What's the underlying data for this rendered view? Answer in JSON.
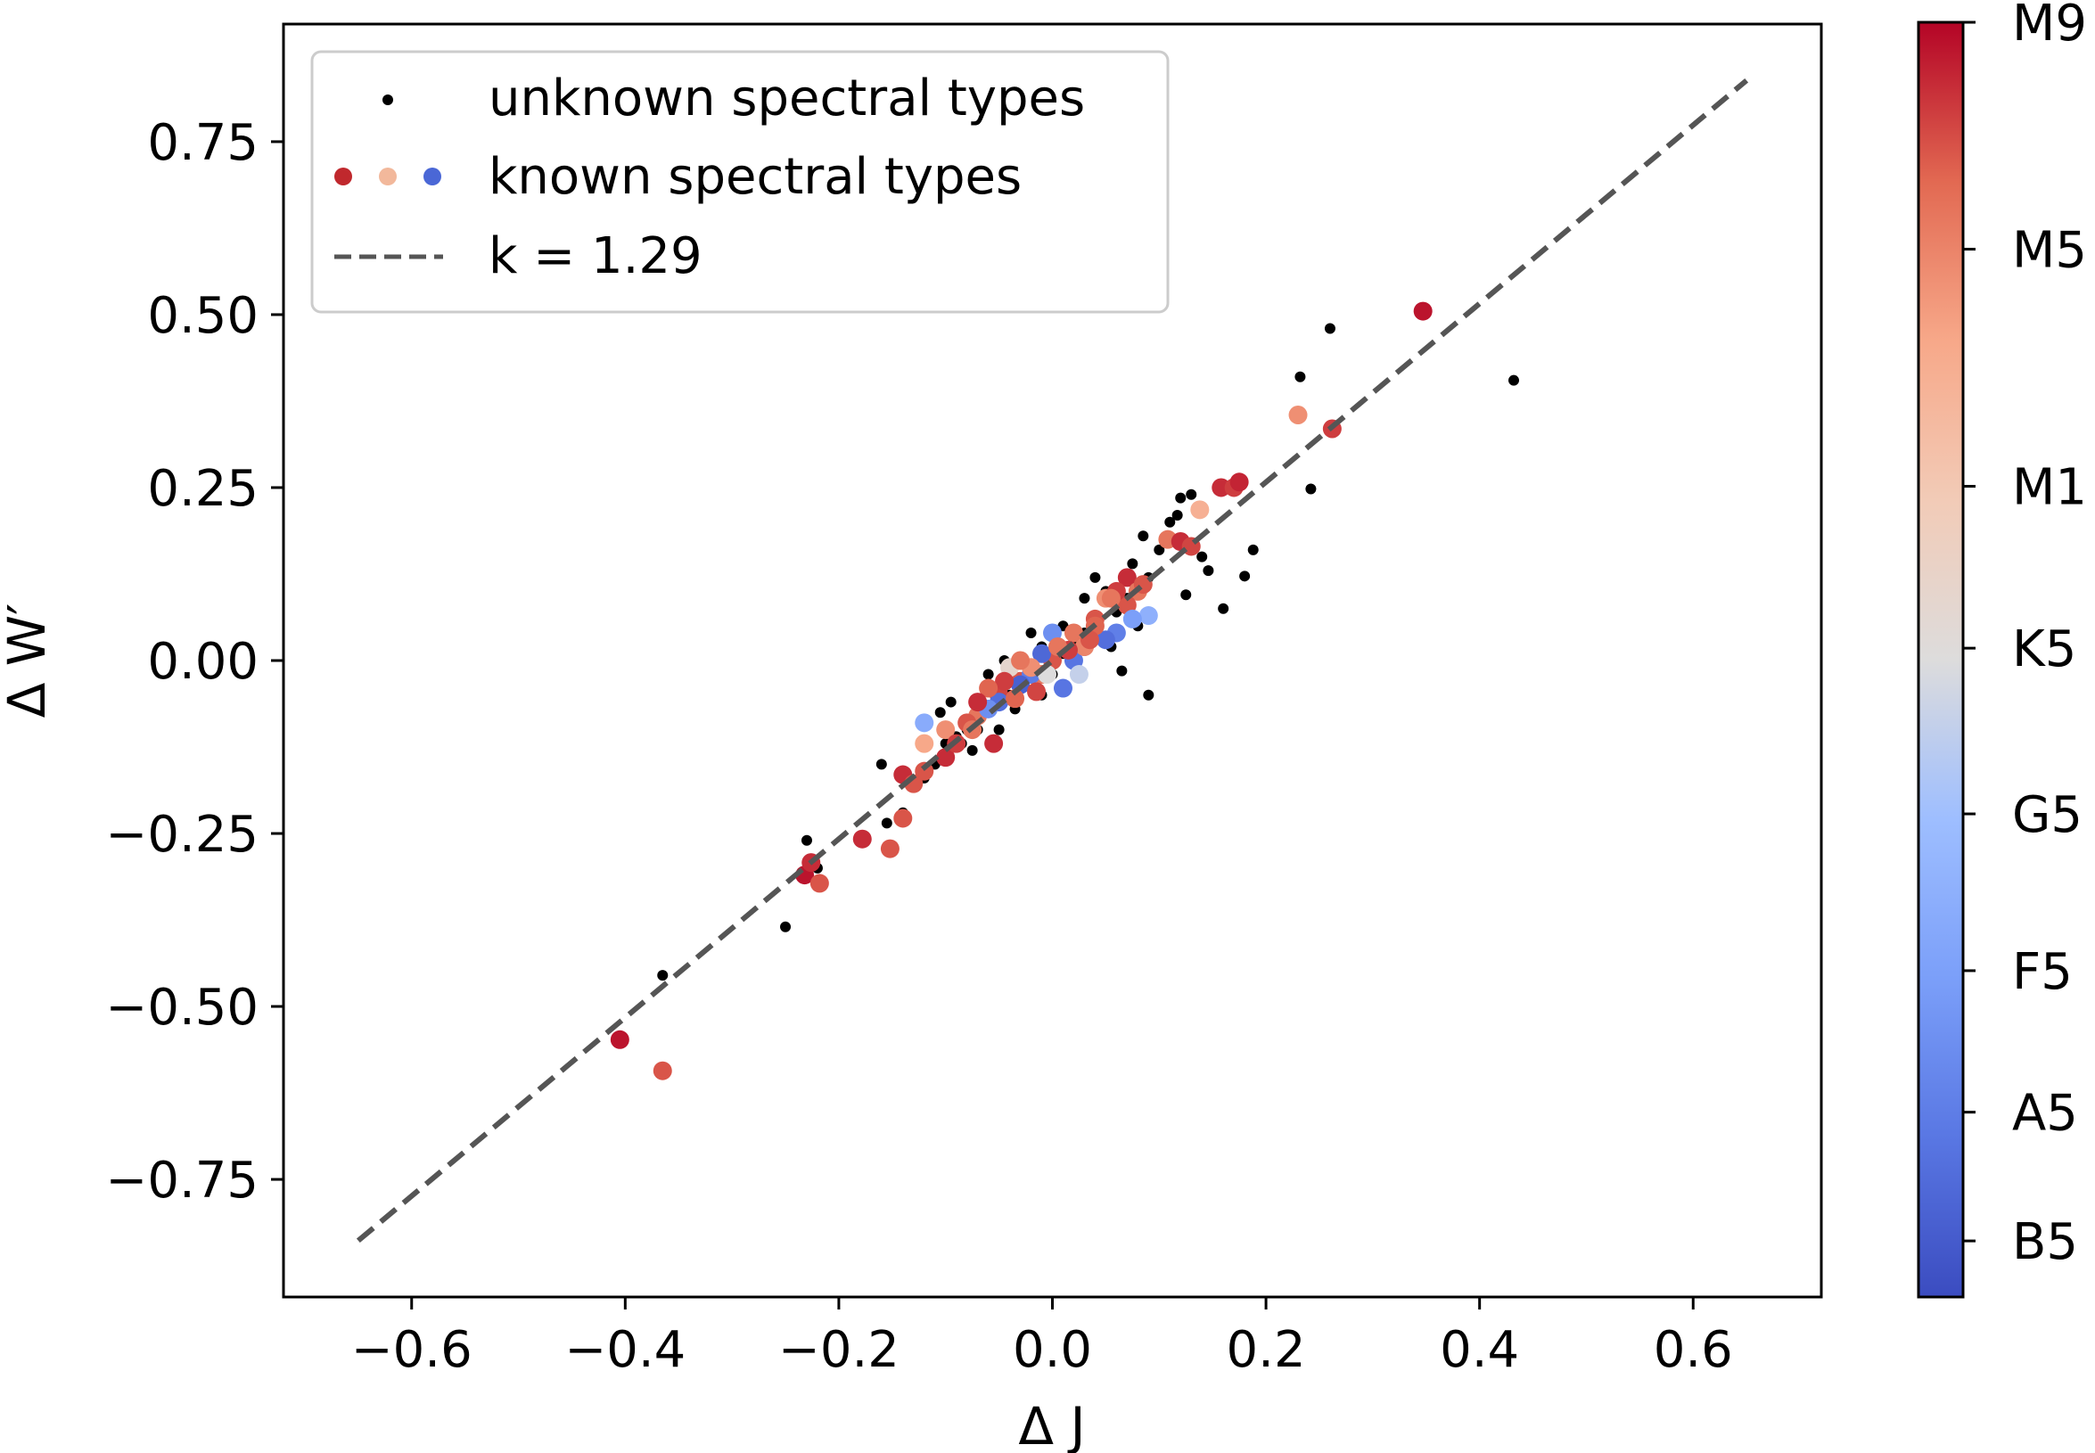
{
  "chart_data": {
    "type": "scatter",
    "xlabel": "Δ J",
    "ylabel": "Δ W′",
    "xlim": [
      -0.72,
      0.72
    ],
    "ylim": [
      -0.92,
      0.92
    ],
    "xticks": [
      -0.6,
      -0.4,
      -0.2,
      0.0,
      0.2,
      0.4,
      0.6
    ],
    "xtick_labels": [
      "−0.6",
      "−0.4",
      "−0.2",
      "0.0",
      "0.2",
      "0.4",
      "0.6"
    ],
    "yticks": [
      -0.75,
      -0.5,
      -0.25,
      0.0,
      0.25,
      0.5,
      0.75
    ],
    "ytick_labels": [
      "−0.75",
      "−0.50",
      "−0.25",
      "0.00",
      "0.25",
      "0.50",
      "0.75"
    ],
    "legend": {
      "placement": "upper-left",
      "entries": [
        {
          "label": "unknown spectral types",
          "marker": "small-black-dot"
        },
        {
          "label": "known spectral types",
          "marker": "colored-dots"
        },
        {
          "label": "k = 1.29",
          "marker": "dashed-line"
        }
      ]
    },
    "fit_line": {
      "slope": 1.29,
      "x_range": [
        -0.65,
        0.65
      ],
      "color": "#555555",
      "style": "dashed"
    },
    "colorbar": {
      "colormap": "coolwarm",
      "vmin": 0,
      "vmax": 1,
      "ticks": [
        {
          "label": "M9",
          "value": 1.0
        },
        {
          "label": "M5",
          "value": 0.822
        },
        {
          "label": "M1",
          "value": 0.636
        },
        {
          "label": "K5",
          "value": 0.509
        },
        {
          "label": "G5",
          "value": 0.379
        },
        {
          "label": "F5",
          "value": 0.256
        },
        {
          "label": "A5",
          "value": 0.145
        },
        {
          "label": "B5",
          "value": 0.044
        }
      ]
    },
    "series": [
      {
        "name": "unknown spectral types",
        "color": "#000000",
        "points": [
          [
            0.26,
            0.48
          ],
          [
            0.232,
            0.41
          ],
          [
            0.432,
            0.405
          ],
          [
            0.242,
            0.248
          ],
          [
            0.188,
            0.16
          ],
          [
            0.18,
            0.122
          ],
          [
            0.16,
            0.075
          ],
          [
            0.146,
            0.13
          ],
          [
            0.14,
            0.15
          ],
          [
            0.13,
            0.24
          ],
          [
            0.12,
            0.235
          ],
          [
            0.117,
            0.21
          ],
          [
            0.11,
            0.2
          ],
          [
            0.085,
            0.18
          ],
          [
            0.125,
            0.095
          ],
          [
            0.09,
            0.12
          ],
          [
            0.07,
            0.09
          ],
          [
            0.06,
            0.07
          ],
          [
            0.08,
            0.05
          ],
          [
            0.04,
            0.06
          ],
          [
            0.03,
            0.04
          ],
          [
            0.02,
            0.03
          ],
          [
            0.01,
            0.01
          ],
          [
            -0.01,
            0.02
          ],
          [
            -0.02,
            -0.01
          ],
          [
            -0.03,
            -0.03
          ],
          [
            -0.04,
            -0.05
          ],
          [
            -0.05,
            -0.04
          ],
          [
            -0.06,
            -0.07
          ],
          [
            -0.07,
            -0.08
          ],
          [
            -0.08,
            -0.1
          ],
          [
            -0.09,
            -0.11
          ],
          [
            -0.1,
            -0.12
          ],
          [
            -0.105,
            -0.075
          ],
          [
            -0.095,
            -0.06
          ],
          [
            -0.085,
            -0.12
          ],
          [
            -0.11,
            -0.15
          ],
          [
            -0.12,
            -0.17
          ],
          [
            -0.13,
            -0.18
          ],
          [
            -0.16,
            -0.15
          ],
          [
            -0.14,
            -0.22
          ],
          [
            -0.155,
            -0.235
          ],
          [
            -0.23,
            -0.26
          ],
          [
            -0.22,
            -0.3
          ],
          [
            -0.25,
            -0.385
          ],
          [
            -0.365,
            -0.455
          ],
          [
            -0.01,
            -0.05
          ],
          [
            0.0,
            -0.02
          ],
          [
            0.01,
            0.05
          ],
          [
            0.03,
            0.09
          ],
          [
            0.05,
            0.1
          ],
          [
            0.055,
            0.02
          ],
          [
            0.065,
            -0.015
          ],
          [
            0.09,
            -0.05
          ],
          [
            -0.045,
            0.0
          ],
          [
            -0.06,
            -0.02
          ],
          [
            -0.02,
            0.04
          ],
          [
            -0.035,
            -0.07
          ],
          [
            -0.07,
            -0.1
          ],
          [
            -0.075,
            -0.13
          ],
          [
            -0.05,
            -0.1
          ],
          [
            0.1,
            0.16
          ],
          [
            0.075,
            0.14
          ],
          [
            0.04,
            0.12
          ]
        ]
      },
      {
        "name": "known spectral types",
        "points": [
          [
            0.347,
            0.505,
            0.98
          ],
          [
            0.23,
            0.355,
            0.8
          ],
          [
            0.262,
            0.335,
            0.93
          ],
          [
            0.158,
            0.25,
            0.95
          ],
          [
            0.17,
            0.25,
            0.93
          ],
          [
            0.175,
            0.258,
            0.96
          ],
          [
            0.138,
            0.218,
            0.72
          ],
          [
            0.108,
            0.175,
            0.85
          ],
          [
            0.12,
            0.172,
            0.95
          ],
          [
            0.13,
            0.165,
            0.92
          ],
          [
            0.07,
            0.12,
            0.95
          ],
          [
            0.08,
            0.1,
            0.85
          ],
          [
            0.05,
            0.09,
            0.8
          ],
          [
            0.07,
            0.08,
            0.9
          ],
          [
            0.04,
            0.06,
            0.9
          ],
          [
            0.02,
            0.04,
            0.85
          ],
          [
            0.03,
            0.02,
            0.95
          ],
          [
            0.0,
            0.0,
            0.9
          ],
          [
            -0.01,
            -0.02,
            0.85
          ],
          [
            -0.03,
            -0.03,
            0.9
          ],
          [
            -0.05,
            -0.05,
            0.92
          ],
          [
            -0.07,
            -0.08,
            0.85
          ],
          [
            -0.055,
            -0.12,
            0.95
          ],
          [
            -0.12,
            -0.12,
            0.75
          ],
          [
            -0.12,
            -0.16,
            0.9
          ],
          [
            -0.1,
            -0.14,
            0.95
          ],
          [
            -0.14,
            -0.165,
            0.95
          ],
          [
            -0.13,
            -0.178,
            0.9
          ],
          [
            -0.14,
            -0.228,
            0.9
          ],
          [
            -0.178,
            -0.258,
            0.95
          ],
          [
            -0.152,
            -0.272,
            0.9
          ],
          [
            -0.232,
            -0.31,
            0.98
          ],
          [
            -0.218,
            -0.322,
            0.9
          ],
          [
            -0.226,
            -0.292,
            0.95
          ],
          [
            -0.405,
            -0.548,
            0.98
          ],
          [
            -0.365,
            -0.593,
            0.9
          ],
          [
            0.09,
            0.065,
            0.32
          ],
          [
            0.075,
            0.06,
            0.25
          ],
          [
            0.06,
            0.04,
            0.15
          ],
          [
            0.05,
            0.03,
            0.1
          ],
          [
            0.02,
            0.0,
            0.12
          ],
          [
            0.0,
            0.04,
            0.2
          ],
          [
            -0.01,
            0.01,
            0.08
          ],
          [
            -0.02,
            -0.02,
            0.14
          ],
          [
            -0.03,
            -0.035,
            0.06
          ],
          [
            -0.04,
            -0.01,
            0.55
          ],
          [
            -0.05,
            -0.06,
            0.1
          ],
          [
            -0.06,
            -0.07,
            0.2
          ],
          [
            -0.12,
            -0.09,
            0.3
          ],
          [
            0.01,
            -0.04,
            0.12
          ],
          [
            0.025,
            -0.02,
            0.45
          ],
          [
            -0.005,
            -0.02,
            0.5
          ],
          [
            0.04,
            0.05,
            0.88
          ],
          [
            0.06,
            0.1,
            0.93
          ],
          [
            0.055,
            0.09,
            0.85
          ],
          [
            0.03,
            0.02,
            0.82
          ],
          [
            -0.02,
            -0.01,
            0.8
          ],
          [
            -0.03,
            0.0,
            0.85
          ],
          [
            -0.045,
            -0.03,
            0.93
          ],
          [
            -0.06,
            -0.04,
            0.88
          ],
          [
            -0.07,
            -0.06,
            0.95
          ],
          [
            -0.08,
            -0.09,
            0.9
          ],
          [
            -0.1,
            -0.1,
            0.8
          ],
          [
            0.085,
            0.11,
            0.9
          ],
          [
            0.035,
            0.03,
            0.9
          ],
          [
            0.015,
            0.015,
            0.93
          ],
          [
            0.005,
            0.02,
            0.85
          ],
          [
            -0.015,
            -0.045,
            0.92
          ],
          [
            -0.035,
            -0.055,
            0.88
          ],
          [
            -0.075,
            -0.1,
            0.85
          ],
          [
            -0.09,
            -0.12,
            0.93
          ]
        ]
      }
    ]
  }
}
